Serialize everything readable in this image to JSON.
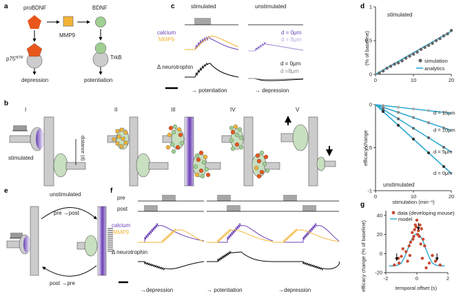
{
  "panel_letters": [
    "a",
    "b",
    "c",
    "d",
    "e",
    "f",
    "g"
  ],
  "colors": {
    "orange": "#e8561c",
    "yellow": "#f2b437",
    "green": "#9fcf92",
    "gray": "#cccccc",
    "purple": "#6a3fb5",
    "cyan": "#2aa8d0",
    "dotgray": "#666666",
    "red": "#c94a33"
  },
  "panel_a": {
    "proBDNF": "proBDNF",
    "bdnf": "BDNF",
    "mmp9": "MMP9",
    "p75": "p75",
    "p75_sup": "NTR",
    "trkb": "TrkB",
    "depression": "depression",
    "potentiation": "potentiation"
  },
  "panel_b": {
    "stages": [
      "I",
      "II",
      "III",
      "IV",
      "V"
    ],
    "stimulated": "stimulated",
    "unstimulated": "unstimulated",
    "distance": "distance (d)"
  },
  "panel_c": {
    "stimulated": "stimulated",
    "unstimulated": "unstimulated",
    "calcium": "calcium",
    "mmp9": "MMP9",
    "d0_top": "d = 0μm",
    "d8_top": "d = 8μm",
    "neurotrophin": "Δ neurotrophin",
    "d0_bot": "d =  0μm",
    "d8_bot": "d =8μm",
    "potentiation": "→ potentiation",
    "depression": "→ depression"
  },
  "panel_e": {
    "pre_post": "pre →post",
    "post_pre": "post →pre"
  },
  "panel_f": {
    "pre": "pre",
    "post": "post",
    "calcium": "calcium",
    "mmp9": "MMP9",
    "neurotrophin": "Δ neurotrophin",
    "labels": [
      "→depression",
      "→ potentiation",
      "→depression"
    ]
  },
  "chart_data": [
    {
      "id": "d-top",
      "type": "scatter",
      "annotation": "stimulated",
      "xlim": [
        0,
        20
      ],
      "ylim": [
        0,
        1
      ],
      "xticks": [
        "0",
        "10",
        "20"
      ],
      "yticks": [
        "0",
        "0.5",
        "1"
      ],
      "ylabel": "(% of baseline)",
      "legend": [
        "simulation",
        "analytics"
      ],
      "series": [
        {
          "name": "simulation",
          "x": [
            1,
            2,
            3,
            4,
            5,
            6,
            7,
            8,
            9,
            10,
            11,
            12,
            13,
            14,
            15,
            16,
            17,
            18,
            19,
            20
          ],
          "y": [
            0.02,
            0.05,
            0.09,
            0.12,
            0.15,
            0.17,
            0.2,
            0.24,
            0.27,
            0.3,
            0.33,
            0.37,
            0.4,
            0.43,
            0.46,
            0.5,
            0.53,
            0.57,
            0.6,
            0.65
          ]
        },
        {
          "name": "analytics",
          "x": [
            0,
            20
          ],
          "y": [
            0,
            0.64
          ]
        }
      ]
    },
    {
      "id": "d-bottom",
      "type": "scatter",
      "annotation": "unstimulated",
      "xlim": [
        0,
        20
      ],
      "ylim": [
        -1,
        0
      ],
      "xticks": [
        "0",
        "10",
        "20"
      ],
      "yticks": [
        "-1",
        "-0.5",
        "0"
      ],
      "xlabel": "stimulation (min⁻¹)",
      "ylabel": "efficacy change",
      "series": [
        {
          "name": "d = 15μm",
          "x": [
            0,
            2,
            4,
            6,
            8,
            10,
            12,
            14,
            16,
            18,
            20
          ],
          "y": [
            0,
            -0.01,
            -0.02,
            -0.03,
            -0.04,
            -0.05,
            -0.06,
            -0.07,
            -0.08,
            -0.09,
            -0.1
          ]
        },
        {
          "name": "d = 10μm",
          "x": [
            0,
            2,
            4,
            6,
            8,
            10,
            12,
            14,
            16,
            18,
            20
          ],
          "y": [
            0,
            -0.03,
            -0.06,
            -0.09,
            -0.12,
            -0.15,
            -0.18,
            -0.21,
            -0.24,
            -0.27,
            -0.3
          ]
        },
        {
          "name": "d = 5μm",
          "x": [
            0,
            2,
            4,
            6,
            8,
            10,
            12,
            14,
            16,
            18,
            20
          ],
          "y": [
            0,
            -0.055,
            -0.11,
            -0.165,
            -0.22,
            -0.275,
            -0.33,
            -0.385,
            -0.44,
            -0.495,
            -0.55
          ]
        },
        {
          "name": "d = 0μm",
          "x": [
            0,
            2,
            4,
            6,
            8,
            10,
            12,
            14,
            16,
            18,
            20
          ],
          "y": [
            0,
            -0.08,
            -0.16,
            -0.24,
            -0.32,
            -0.4,
            -0.48,
            -0.56,
            -0.64,
            -0.72,
            -0.8
          ]
        }
      ]
    },
    {
      "id": "g",
      "type": "scatter",
      "xlim": [
        -2,
        2
      ],
      "ylim": [
        -20,
        45
      ],
      "xticks": [
        "-2",
        "0",
        "2"
      ],
      "yticks": [
        "-20",
        "0",
        "20",
        "40"
      ],
      "xlabel": "temporal offset (s)",
      "ylabel": "efficacy change (% of baseline)",
      "legend": [
        "data (developing mouse)",
        "model"
      ],
      "arrows_x": [
        -1.3,
        0.1,
        1.3
      ],
      "series": [
        {
          "name": "data (developing mouse)",
          "x": [
            -1.45,
            -1.2,
            -1.15,
            -1.0,
            -0.9,
            -0.7,
            -0.6,
            -0.5,
            -0.45,
            -0.4,
            -0.3,
            -0.25,
            -0.2,
            -0.15,
            -0.1,
            -0.05,
            0.0,
            0.05,
            0.1,
            0.15,
            0.2,
            0.25,
            0.3,
            0.35,
            0.4,
            0.5,
            0.6,
            0.8,
            1.0,
            1.2,
            1.5
          ],
          "y": [
            -12,
            -5,
            -10,
            -3,
            5,
            2,
            -8,
            8,
            -2,
            12,
            22,
            15,
            18,
            25,
            30,
            28,
            35,
            20,
            24,
            18,
            30,
            10,
            26,
            -5,
            15,
            8,
            -15,
            -10,
            -2,
            -8,
            -12
          ]
        },
        {
          "name": "model",
          "x": [
            -1.8,
            -1.5,
            -1.2,
            -1.0,
            -0.8,
            -0.6,
            -0.4,
            -0.2,
            0.0,
            0.2,
            0.4,
            0.6,
            0.8,
            1.0,
            1.2,
            1.5,
            1.8
          ],
          "y": [
            -13,
            -13,
            -12,
            -10,
            -4,
            4,
            13,
            19,
            21,
            19,
            13,
            4,
            -4,
            -10,
            -12,
            -13,
            -13
          ]
        }
      ]
    }
  ]
}
